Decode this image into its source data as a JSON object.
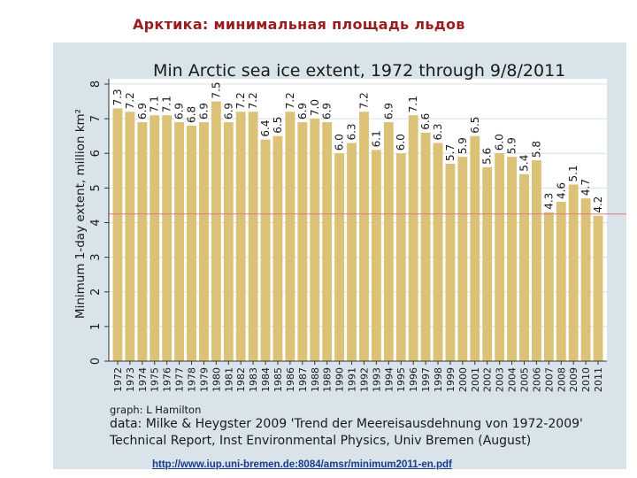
{
  "slide_title": "Арктика: минимальная площадь льдов",
  "credits": {
    "graph": "graph: L Hamilton",
    "data": "data: Milke & Heygster 2009 'Trend der Meereisausdehnung von 1972-2009'",
    "report": "Technical Report, Inst Environmental Physics, Univ Bremen (August)"
  },
  "source_url": "http://www.iup.uni-bremen.de:8084/amsr/minimum2011-en.pdf",
  "colors": {
    "bar": "#dcc277",
    "chart_background": "#d9e3ea",
    "plot_background": "#ffffff",
    "gridline": "#d8e0e6",
    "reference_line": "#e07b7b",
    "title": "#9b1c1c",
    "link": "#1a3c8c"
  },
  "chart_data": {
    "type": "bar",
    "title": "Min Arctic sea ice extent, 1972 through 9/8/2011",
    "xlabel": "",
    "ylabel": "Minimum 1-day extent, million km²",
    "ylim": [
      0,
      8
    ],
    "yticks": [
      0,
      1,
      2,
      3,
      4,
      5,
      6,
      7,
      8
    ],
    "grid": true,
    "reference_line": 4.25,
    "categories": [
      "1972",
      "1973",
      "1974",
      "1975",
      "1976",
      "1977",
      "1978",
      "1979",
      "1980",
      "1981",
      "1982",
      "1983",
      "1984",
      "1985",
      "1986",
      "1987",
      "1988",
      "1989",
      "1990",
      "1991",
      "1992",
      "1993",
      "1994",
      "1995",
      "1996",
      "1997",
      "1998",
      "1999",
      "2000",
      "2001",
      "2002",
      "2003",
      "2004",
      "2005",
      "2006",
      "2007",
      "2008",
      "2009",
      "2010",
      "2011"
    ],
    "values": [
      7.3,
      7.2,
      6.9,
      7.1,
      7.1,
      6.9,
      6.8,
      6.9,
      7.5,
      6.9,
      7.2,
      7.2,
      6.4,
      6.5,
      7.2,
      6.9,
      7.0,
      6.9,
      6.0,
      6.3,
      7.2,
      6.1,
      6.9,
      6.0,
      7.1,
      6.6,
      6.3,
      5.7,
      5.9,
      6.5,
      5.6,
      6.0,
      5.9,
      5.4,
      5.8,
      4.3,
      4.6,
      5.1,
      4.7,
      4.2
    ],
    "value_labels": [
      "7.3",
      "7.2",
      "6.9",
      "7.1",
      "7.1",
      "6.9",
      "6.8",
      "6.9",
      "7.5",
      "6.9",
      "7.2",
      "7.2",
      "6.4",
      "6.5",
      "7.2",
      "6.9",
      "7.0",
      "6.9",
      "6.0",
      "6.3",
      "7.2",
      "6.1",
      "6.9",
      "6.0",
      "7.1",
      "6.6",
      "6.3",
      "5.7",
      "5.9",
      "6.5",
      "5.6",
      "6.0",
      "5.9",
      "5.4",
      "5.8",
      "4.3",
      "4.6",
      "5.1",
      "4.7",
      "4.2"
    ]
  }
}
